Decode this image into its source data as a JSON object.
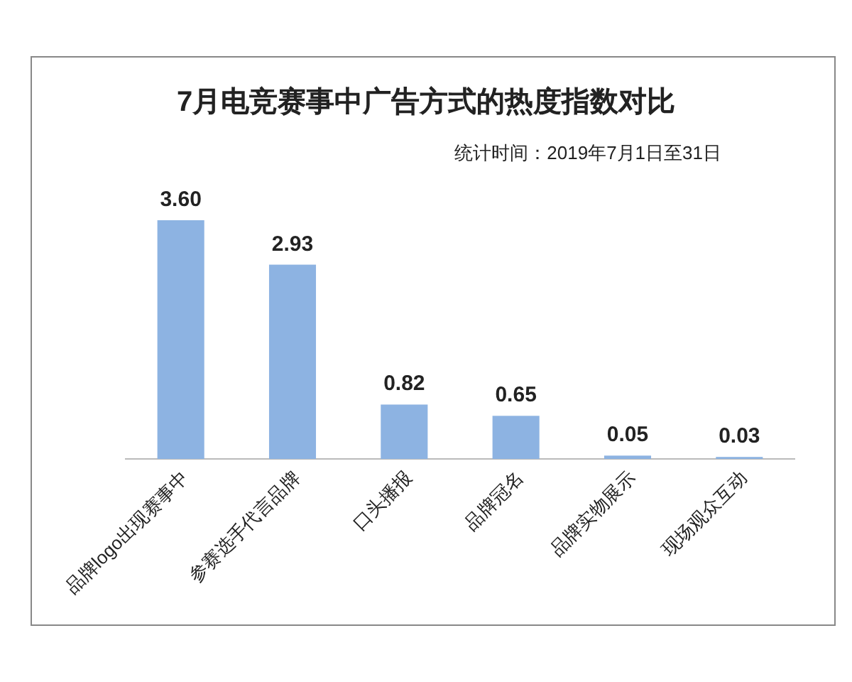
{
  "chart_data": {
    "type": "bar",
    "title": "7月电竞赛事中广告方式的热度指数对比",
    "subtitle": "统计时间：2019年7月1日至31日",
    "categories": [
      "品牌logo出现赛事中",
      "参赛选手代言品牌",
      "口头播报",
      "品牌冠名",
      "品牌实物展示",
      "现场观众互动"
    ],
    "values": [
      3.6,
      2.93,
      0.82,
      0.65,
      0.05,
      0.03
    ],
    "value_labels": [
      "3.60",
      "2.93",
      "0.82",
      "0.65",
      "0.05",
      "0.03"
    ],
    "color": "#8db3e2"
  }
}
